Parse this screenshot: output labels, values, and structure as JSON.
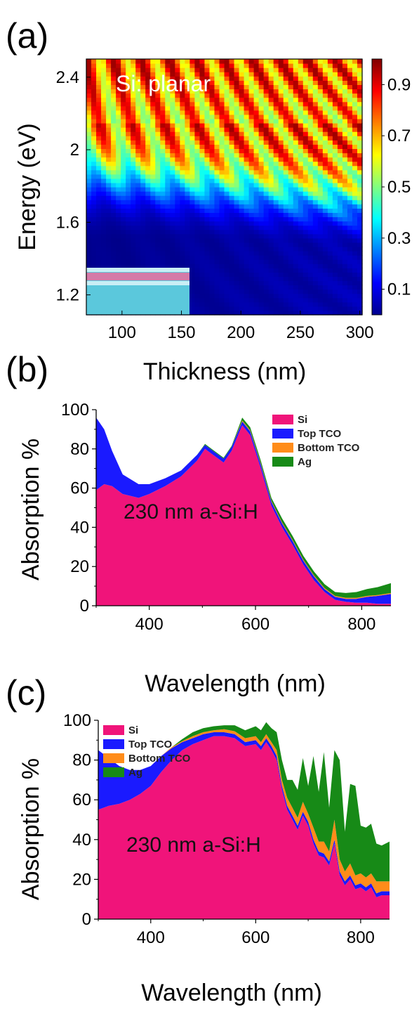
{
  "figure": {
    "panels": [
      "(a)",
      "(b)",
      "(c)"
    ]
  },
  "chart_data": [
    {
      "type": "heatmap",
      "panel": "(a)",
      "annotation": "Si: planar",
      "xlabel": "Thickness (nm)",
      "ylabel": "Energy (eV)",
      "xlim": [
        70,
        302
      ],
      "ylim": [
        1.09,
        2.5
      ],
      "xticks": [
        100,
        150,
        200,
        250,
        300
      ],
      "yticks": [
        1.2,
        1.6,
        2,
        2.4
      ],
      "colorbar": {
        "ticks": [
          0.1,
          0.3,
          0.5,
          0.7,
          0.9
        ],
        "range": [
          0,
          1
        ]
      },
      "value_description": "absorption fraction; low (<0.1) below ~1.7 eV, rising to ~0.95 near 2.3-2.5 eV with thickness-dependent interference fringes"
    },
    {
      "type": "area",
      "panel": "(b)",
      "annotation": "230 nm a-Si:H",
      "xlabel": "Wavelength (nm)",
      "ylabel": "Absorption %",
      "xlim": [
        300,
        855
      ],
      "ylim": [
        0,
        100
      ],
      "xticks": [
        400,
        600,
        800
      ],
      "yticks": [
        0,
        20,
        40,
        60,
        80,
        100
      ],
      "legend": [
        "Si",
        "Top TCO",
        "Bottom TCO",
        "Ag"
      ],
      "legend_position": "top-right",
      "colors": {
        "Si": "#f0147a",
        "Top TCO": "#1a1aff",
        "Bottom TCO": "#ff8c1a",
        "Ag": "#178a17"
      },
      "x": [
        300,
        315,
        330,
        350,
        380,
        400,
        430,
        460,
        490,
        505,
        520,
        540,
        555,
        575,
        590,
        610,
        630,
        650,
        670,
        690,
        710,
        730,
        750,
        770,
        790,
        810,
        830,
        855
      ],
      "series": [
        {
          "name": "Si",
          "values": [
            59,
            62,
            61,
            57,
            55,
            57,
            61,
            66,
            74,
            80,
            77,
            73,
            79,
            92,
            87,
            70,
            51,
            40,
            31,
            21,
            13,
            7,
            3,
            2,
            1.5,
            1.5,
            1,
            1
          ]
        },
        {
          "name": "Top TCO",
          "values": [
            37,
            28,
            18,
            10,
            7,
            5,
            4,
            3,
            3,
            2,
            2,
            2,
            2,
            2,
            2,
            2,
            2,
            2,
            2,
            2,
            2,
            1.5,
            1.5,
            1.5,
            2,
            3,
            4,
            5
          ]
        },
        {
          "name": "Bottom TCO",
          "values": [
            0,
            0,
            0,
            0,
            0,
            0,
            0,
            0,
            0,
            0,
            0,
            0,
            0,
            0.5,
            0.5,
            0.5,
            0.5,
            0.5,
            0.5,
            0.5,
            0.5,
            0.5,
            0.5,
            0.5,
            0.5,
            0.5,
            0.5,
            0.5
          ]
        },
        {
          "name": "Ag",
          "values": [
            0,
            0,
            0,
            0,
            0,
            0,
            0,
            0,
            0,
            0.5,
            0.5,
            0.5,
            0.5,
            1.5,
            1.5,
            1.5,
            1.5,
            2,
            2,
            2,
            2,
            2,
            2,
            2.5,
            3,
            3.5,
            4,
            5
          ]
        }
      ]
    },
    {
      "type": "area",
      "panel": "(c)",
      "annotation": "230 nm a-Si:H",
      "xlabel": "Wavelength (nm)",
      "ylabel": "Absorption %",
      "xlim": [
        300,
        855
      ],
      "ylim": [
        0,
        100
      ],
      "xticks": [
        400,
        600,
        800
      ],
      "yticks": [
        0,
        20,
        40,
        60,
        80,
        100
      ],
      "legend": [
        "Si",
        "Top TCO",
        "Bottom TCO",
        "Ag"
      ],
      "legend_position": "top-left",
      "colors": {
        "Si": "#f0147a",
        "Top TCO": "#1a1aff",
        "Bottom TCO": "#ff8c1a",
        "Ag": "#178a17"
      },
      "x": [
        300,
        320,
        340,
        360,
        380,
        400,
        420,
        440,
        460,
        480,
        500,
        520,
        540,
        560,
        580,
        600,
        610,
        620,
        630,
        640,
        650,
        660,
        670,
        680,
        690,
        700,
        710,
        720,
        730,
        740,
        750,
        760,
        770,
        780,
        790,
        800,
        810,
        820,
        830,
        840,
        855
      ],
      "series": [
        {
          "name": "Si",
          "values": [
            55,
            57,
            58,
            60,
            63,
            67,
            74,
            80,
            85,
            88,
            90,
            92,
            92,
            91,
            87,
            88,
            85,
            89,
            85,
            80,
            65,
            55,
            50,
            45,
            52,
            47,
            38,
            32,
            31,
            27,
            38,
            22,
            17,
            20,
            15,
            16,
            14,
            16,
            11,
            12,
            12
          ]
        },
        {
          "name": "Top TCO",
          "values": [
            30,
            24,
            19,
            15,
            12,
            10,
            8,
            6,
            4,
            3,
            3,
            2,
            2,
            2,
            2,
            2,
            2,
            2,
            2,
            2,
            2,
            2,
            2,
            2,
            2,
            2,
            2,
            2,
            2,
            2,
            2,
            2,
            2,
            2,
            2,
            2,
            2,
            2,
            2,
            2,
            2
          ]
        },
        {
          "name": "Bottom TCO",
          "values": [
            0,
            0,
            0,
            0,
            0,
            0,
            0,
            0.5,
            0.5,
            1,
            1,
            1,
            1.5,
            1.5,
            2,
            2,
            2,
            2,
            2,
            3,
            3,
            4,
            4,
            4,
            5,
            4,
            6,
            5,
            6,
            5,
            10,
            6,
            5,
            6,
            5,
            5,
            5,
            5,
            6,
            5,
            5
          ]
        },
        {
          "name": "Ag",
          "values": [
            0,
            0,
            0,
            0,
            0,
            0,
            0,
            0,
            1,
            2,
            2,
            2,
            2,
            3,
            4,
            5,
            6,
            6,
            7,
            9,
            10,
            9,
            14,
            14,
            22,
            14,
            36,
            25,
            45,
            22,
            35,
            50,
            20,
            40,
            45,
            24,
            25,
            25,
            19,
            18,
            20
          ]
        }
      ]
    }
  ]
}
